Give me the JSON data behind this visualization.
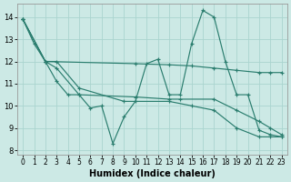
{
  "xlabel": "Humidex (Indice chaleur)",
  "background_color": "#cce9e5",
  "grid_color": "#aad4cf",
  "line_color": "#2a7d6e",
  "xlim": [
    -0.5,
    23.5
  ],
  "ylim": [
    7.8,
    14.6
  ],
  "yticks": [
    8,
    9,
    10,
    11,
    12,
    13,
    14
  ],
  "xticks": [
    0,
    1,
    2,
    3,
    4,
    5,
    6,
    7,
    8,
    9,
    10,
    11,
    12,
    13,
    14,
    15,
    16,
    17,
    18,
    19,
    20,
    21,
    22,
    23
  ],
  "series": [
    {
      "x": [
        0,
        1,
        2,
        3,
        4,
        5,
        6,
        7,
        8,
        9,
        10,
        11,
        12,
        13,
        14,
        15,
        16,
        17,
        18,
        19,
        20,
        21,
        22,
        23
      ],
      "y": [
        13.9,
        12.8,
        12.0,
        11.1,
        10.5,
        10.5,
        9.9,
        10.0,
        8.3,
        9.5,
        10.2,
        11.9,
        12.1,
        10.5,
        10.5,
        12.8,
        14.3,
        14.0,
        12.0,
        10.5,
        10.5,
        8.9,
        8.7,
        8.6
      ]
    },
    {
      "x": [
        0,
        2,
        10,
        13,
        15,
        17,
        19,
        21,
        22,
        23
      ],
      "y": [
        13.9,
        12.0,
        11.9,
        11.85,
        11.8,
        11.7,
        11.6,
        11.5,
        11.5,
        11.5
      ]
    },
    {
      "x": [
        0,
        2,
        3,
        5,
        10,
        13,
        14,
        17,
        19,
        21,
        22,
        23
      ],
      "y": [
        13.9,
        12.0,
        11.7,
        10.5,
        10.4,
        10.3,
        10.3,
        10.3,
        9.8,
        9.3,
        9.0,
        8.7
      ]
    },
    {
      "x": [
        0,
        2,
        3,
        5,
        9,
        13,
        15,
        17,
        19,
        21,
        22,
        23
      ],
      "y": [
        13.9,
        12.0,
        12.0,
        10.8,
        10.2,
        10.2,
        10.0,
        9.8,
        9.0,
        8.6,
        8.6,
        8.6
      ]
    }
  ]
}
